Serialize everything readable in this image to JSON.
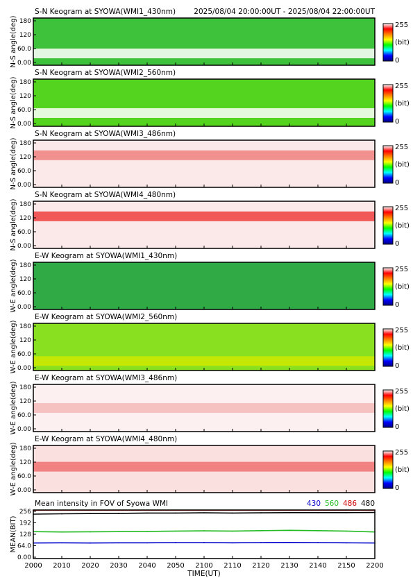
{
  "header": {
    "time_range": "2025/08/04 20:00:00UT - 2025/08/04 22:00:00UT"
  },
  "colorbar": {
    "max_label": "255",
    "unit_label": "(bit)",
    "min_label": "0",
    "stops": [
      "#000080",
      "#0000ff",
      "#00ffff",
      "#00ff00",
      "#ffff00",
      "#ff8000",
      "#ff0000",
      "#ffffff"
    ]
  },
  "x_axis": {
    "label": "TIME(UT)",
    "ticks": [
      "2000",
      "2010",
      "2020",
      "2030",
      "2040",
      "2050",
      "2100",
      "2110",
      "2120",
      "2130",
      "2140",
      "2150",
      "2200"
    ]
  },
  "keograms": [
    {
      "title": "S-N Keogram at SYOWA(WMI1_430nm)",
      "ylabel": "N-S angle(deg)",
      "yticks": [
        "180",
        "120",
        "60.0",
        "0.00"
      ],
      "base_color": "#3ec23b",
      "band_color": "#ffffff",
      "band_level": 0.25
    },
    {
      "title": "S-N Keogram at SYOWA(WMI2_560nm)",
      "ylabel": "N-S angle(deg)",
      "yticks": [
        "180",
        "120",
        "60.0",
        "0.00"
      ],
      "base_color": "#55d41f",
      "band_color": "#ffffff",
      "band_level": 0.28
    },
    {
      "title": "S-N Keogram at SYOWA(WMI3_486nm)",
      "ylabel": "N-S angle(deg)",
      "yticks": [
        "180",
        "120",
        "60.0",
        "0.00"
      ],
      "base_color": "#fbe9e9",
      "band_color": "#f08080",
      "band_level": 0.68
    },
    {
      "title": "S-N Keogram at SYOWA(WMI4_480nm)",
      "ylabel": "N-S angle(deg)",
      "yticks": [
        "180",
        "120",
        "60.0",
        "0.00"
      ],
      "base_color": "#fbe9e9",
      "band_color": "#ee4040",
      "band_level": 0.68
    },
    {
      "title": "E-W Keogram at SYOWA(WMI1_430nm)",
      "ylabel": "W-E angle(deg)",
      "yticks": [
        "180",
        "120",
        "60.0",
        "0.00"
      ],
      "base_color": "#2faa45",
      "band_color": "#2faa45",
      "band_level": 0.5
    },
    {
      "title": "E-W Keogram at SYOWA(WMI2_560nm)",
      "ylabel": "W-E angle(deg)",
      "yticks": [
        "180",
        "120",
        "60.0",
        "0.00"
      ],
      "base_color": "#88e020",
      "band_color": "#d0e800",
      "band_level": 0.2
    },
    {
      "title": "E-W Keogram at SYOWA(WMI3_486nm)",
      "ylabel": "W-E angle(deg)",
      "yticks": [
        "180",
        "120",
        "60.0",
        "0.00"
      ],
      "base_color": "#fdf0f0",
      "band_color": "#f4b8b8",
      "band_level": 0.5
    },
    {
      "title": "E-W Keogram at SYOWA(WMI4_480nm)",
      "ylabel": "W-E angle(deg)",
      "yticks": [
        "180",
        "120",
        "60.0",
        "0.00"
      ],
      "base_color": "#fbe0e0",
      "band_color": "#f07070",
      "band_level": 0.55
    }
  ],
  "chart_data": {
    "type": "line",
    "title": "Mean intensity in FOV of Syowa WMI",
    "xlabel": "TIME(UT)",
    "ylabel": "MEAN(BIT)",
    "ylim": [
      0,
      256
    ],
    "yticks": [
      "256",
      "192",
      "128",
      "64.0",
      "0.00"
    ],
    "x": [
      "2000",
      "2010",
      "2020",
      "2030",
      "2040",
      "2050",
      "2100",
      "2110",
      "2120",
      "2130",
      "2140",
      "2150",
      "2200"
    ],
    "series": [
      {
        "name": "430",
        "color": "#0000cc",
        "values": [
          82,
          83,
          82,
          83,
          83,
          84,
          84,
          83,
          84,
          85,
          84,
          83,
          82
        ]
      },
      {
        "name": "560",
        "color": "#22bb22",
        "values": [
          142,
          140,
          141,
          142,
          143,
          145,
          146,
          145,
          147,
          149,
          147,
          145,
          140
        ]
      },
      {
        "name": "486",
        "color": "#cc0000",
        "values": [
          255,
          255,
          255,
          255,
          255,
          255,
          255,
          255,
          255,
          255,
          255,
          255,
          255
        ]
      },
      {
        "name": "480",
        "color": "#000000",
        "values": [
          234,
          236,
          237,
          238,
          240,
          240,
          241,
          240,
          241,
          242,
          242,
          242,
          243
        ]
      }
    ]
  }
}
